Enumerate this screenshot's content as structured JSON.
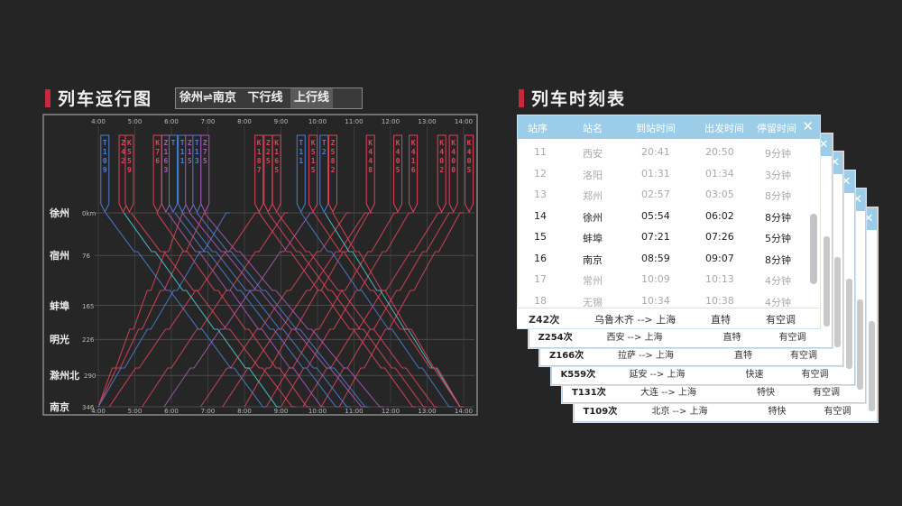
{
  "left_title": "列车运行图",
  "route_tabs": [
    {
      "label": "徐州⇌南京"
    },
    {
      "label": "下行线"
    },
    {
      "label": "上行线"
    }
  ],
  "right_title": "列车时刻表",
  "colors": {
    "accent": "#c8283a",
    "down_line": "#e0435a",
    "up_line": "#4a7fd6",
    "cyan_line": "#4ec9d0",
    "header_blue": "#9bcce8"
  },
  "chart_data": {
    "type": "line",
    "hours": [
      "4:00",
      "5:00",
      "6:00",
      "7:00",
      "8:00",
      "9:00",
      "10:00",
      "11:00",
      "12:00",
      "13:00",
      "14:00"
    ],
    "stations": [
      {
        "name": "徐州",
        "km": "0km"
      },
      {
        "name": "宿州",
        "km": "76"
      },
      {
        "name": "蚌埠",
        "km": "165"
      },
      {
        "name": "明光",
        "km": "226"
      },
      {
        "name": "滁州北",
        "km": "290"
      },
      {
        "name": "南京",
        "km": "346"
      }
    ],
    "station_km": [
      0,
      76,
      165,
      226,
      290,
      346
    ],
    "x_range_hours": [
      4,
      14
    ],
    "train_tags": [
      {
        "code": "T109",
        "hour": 4.18,
        "color": "#4a7fd6"
      },
      {
        "code": "Z42",
        "hour": 4.68,
        "color": "#e0435a"
      },
      {
        "code": "K559",
        "hour": 4.85,
        "color": "#e0435a"
      },
      {
        "code": "K76",
        "hour": 5.62,
        "color": "#e0435a"
      },
      {
        "code": "Z163",
        "hour": 5.85,
        "color": "#a85ab8"
      },
      {
        "code": "T",
        "hour": 6.05,
        "color": "#4a7fd6"
      },
      {
        "code": "T11",
        "hour": 6.3,
        "color": "#4a7fd6"
      },
      {
        "code": "Z15",
        "hour": 6.5,
        "color": "#a85ab8"
      },
      {
        "code": "T13",
        "hour": 6.7,
        "color": "#4a7fd6"
      },
      {
        "code": "Z75",
        "hour": 6.92,
        "color": "#a85ab8"
      },
      {
        "code": "K187",
        "hour": 8.4,
        "color": "#e0435a"
      },
      {
        "code": "Z25",
        "hour": 8.65,
        "color": "#e0435a"
      },
      {
        "code": "K165",
        "hour": 8.88,
        "color": "#e0435a"
      },
      {
        "code": "T11",
        "hour": 9.55,
        "color": "#4a7fd6"
      },
      {
        "code": "K515",
        "hour": 9.88,
        "color": "#e0435a"
      },
      {
        "code": "T2",
        "hour": 10.18,
        "color": "#4a7fd6"
      },
      {
        "code": "Z582",
        "hour": 10.42,
        "color": "#e0435a"
      },
      {
        "code": "K448",
        "hour": 11.45,
        "color": "#e0435a"
      },
      {
        "code": "K405",
        "hour": 12.2,
        "color": "#e0435a"
      },
      {
        "code": "K416",
        "hour": 12.62,
        "color": "#e0435a"
      },
      {
        "code": "K402",
        "hour": 13.4,
        "color": "#e0435a"
      },
      {
        "code": "K400",
        "hour": 13.72,
        "color": "#e0435a"
      },
      {
        "code": "K405",
        "hour": 14.15,
        "color": "#e0435a"
      }
    ],
    "down_trains": [
      {
        "start": 4.2,
        "end": 8.6,
        "color": "#4a7fd6"
      },
      {
        "start": 4.7,
        "end": 8.98,
        "color": "#4ec9d0"
      },
      {
        "start": 4.9,
        "end": 9.4,
        "color": "#e0435a"
      },
      {
        "start": 5.6,
        "end": 9.8,
        "color": "#e0435a"
      },
      {
        "start": 5.9,
        "end": 10.2,
        "color": "#a85ab8"
      },
      {
        "start": 6.1,
        "end": 10.6,
        "color": "#4a7fd6"
      },
      {
        "start": 6.3,
        "end": 10.9,
        "color": "#4a7fd6"
      },
      {
        "start": 6.5,
        "end": 11.3,
        "color": "#a85ab8"
      },
      {
        "start": 6.7,
        "end": 11.4,
        "color": "#4a7fd6"
      },
      {
        "start": 6.9,
        "end": 11.8,
        "color": "#a85ab8"
      },
      {
        "start": 8.4,
        "end": 12.7,
        "color": "#e0435a"
      },
      {
        "start": 8.65,
        "end": 13.0,
        "color": "#e0435a"
      },
      {
        "start": 8.9,
        "end": 13.3,
        "color": "#e0435a"
      },
      {
        "start": 9.55,
        "end": 13.7,
        "color": "#4a7fd6"
      },
      {
        "start": 9.9,
        "end": 14.0,
        "color": "#e0435a"
      },
      {
        "start": 10.2,
        "end": 14.0,
        "color": "#4ec9d0"
      },
      {
        "start": 10.42,
        "end": 14.0,
        "color": "#e0435a"
      }
    ],
    "up_trains": [
      {
        "start": 4.0,
        "end": 6.4,
        "color": "#e0435a"
      },
      {
        "start": 4.0,
        "end": 7.0,
        "color": "#e0435a"
      },
      {
        "start": 4.0,
        "end": 7.6,
        "color": "#4a7fd6"
      },
      {
        "start": 4.3,
        "end": 8.4,
        "color": "#e0435a"
      },
      {
        "start": 5.2,
        "end": 9.2,
        "color": "#e0435a"
      },
      {
        "start": 5.8,
        "end": 9.9,
        "color": "#a85ab8"
      },
      {
        "start": 6.8,
        "end": 10.9,
        "color": "#e0435a"
      },
      {
        "start": 7.4,
        "end": 11.4,
        "color": "#e0435a"
      },
      {
        "start": 8.0,
        "end": 11.5,
        "color": "#e0435a"
      },
      {
        "start": 8.6,
        "end": 12.2,
        "color": "#e0435a"
      },
      {
        "start": 9.0,
        "end": 12.6,
        "color": "#e0435a"
      },
      {
        "start": 9.6,
        "end": 13.4,
        "color": "#e0435a"
      },
      {
        "start": 10.1,
        "end": 13.7,
        "color": "#e0435a"
      },
      {
        "start": 10.6,
        "end": 14.0,
        "color": "#e0435a"
      }
    ]
  },
  "timetable": {
    "headers": [
      "站序",
      "站名",
      "到站时间",
      "出发时间",
      "停留时间"
    ],
    "rows": [
      {
        "seq": "11",
        "station": "西安",
        "arrive": "20:41",
        "depart": "20:50",
        "stay": "9分钟",
        "active": false
      },
      {
        "seq": "12",
        "station": "洛阳",
        "arrive": "01:31",
        "depart": "01:34",
        "stay": "3分钟",
        "active": false
      },
      {
        "seq": "13",
        "station": "郑州",
        "arrive": "02:57",
        "depart": "03:05",
        "stay": "8分钟",
        "active": false
      },
      {
        "seq": "14",
        "station": "徐州",
        "arrive": "05:54",
        "depart": "06:02",
        "stay": "8分钟",
        "active": true
      },
      {
        "seq": "15",
        "station": "蚌埠",
        "arrive": "07:21",
        "depart": "07:26",
        "stay": "5分钟",
        "active": true
      },
      {
        "seq": "16",
        "station": "南京",
        "arrive": "08:59",
        "depart": "09:07",
        "stay": "8分钟",
        "active": true
      },
      {
        "seq": "17",
        "station": "常州",
        "arrive": "10:09",
        "depart": "10:13",
        "stay": "4分钟",
        "active": false
      },
      {
        "seq": "18",
        "station": "无锡",
        "arrive": "10:34",
        "depart": "10:38",
        "stay": "4分钟",
        "active": false
      }
    ],
    "close_icon": "close-icon"
  },
  "train_cards": [
    {
      "train": "Z42次",
      "route": "乌鲁木齐  -->  上海",
      "type": "直特",
      "ac": "有空调"
    },
    {
      "train": "Z254次",
      "route": "西安  -->  上海",
      "type": "直特",
      "ac": "有空调"
    },
    {
      "train": "Z166次",
      "route": "拉萨  -->  上海",
      "type": "直特",
      "ac": "有空调"
    },
    {
      "train": "K559次",
      "route": "延安  -->  上海",
      "type": "快速",
      "ac": "有空调"
    },
    {
      "train": "T131次",
      "route": "大连  -->  上海",
      "type": "特快",
      "ac": "有空调"
    },
    {
      "train": "T109次",
      "route": "北京  -->  上海",
      "type": "特快",
      "ac": "有空调"
    }
  ]
}
